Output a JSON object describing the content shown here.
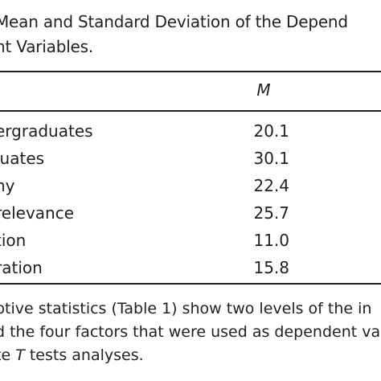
{
  "caption": {
    "line1": "Mean and Standard Deviation of the Depend",
    "line2": "nt Variables."
  },
  "table": {
    "column_header": "M",
    "rows": [
      {
        "label": "ergraduates",
        "value": "20.1"
      },
      {
        "label": "luates",
        "value": "30.1"
      },
      {
        "label": "ny",
        "value": "22.4"
      },
      {
        "label": "relevance",
        "value": "25.7"
      },
      {
        "label": "tion",
        "value": "11.0"
      },
      {
        "label": "ration",
        "value": "15.8"
      }
    ]
  },
  "note": {
    "line1": "ptive statistics (Table 1) show two levels of the in",
    "line2": "d the four factors that were used as dependent var",
    "line3_pre": "te ",
    "line3_italic": "T",
    "line3_post": " tests analyses."
  }
}
